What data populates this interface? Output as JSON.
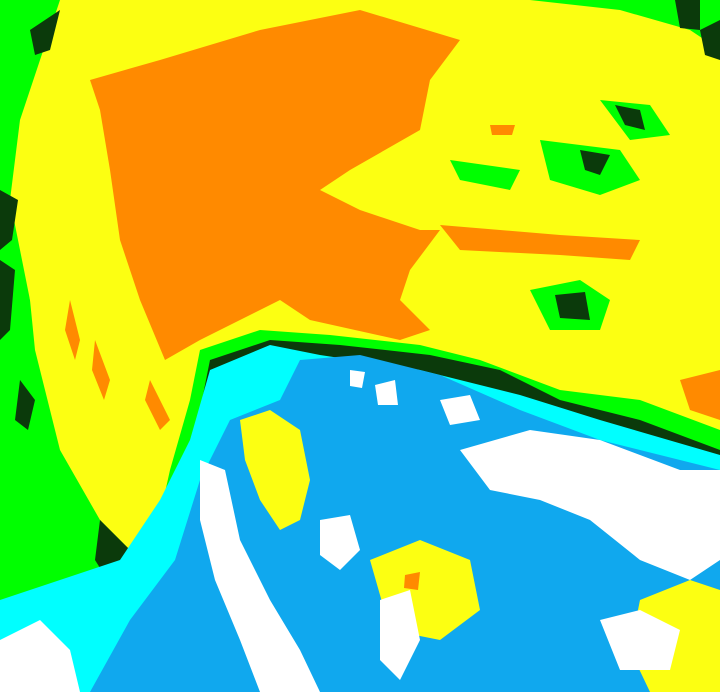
{
  "palette": {
    "yellow": "#fcff12",
    "orange": "#ff8a00",
    "green": "#00ff00",
    "dark_green": "#0b3a0b",
    "cyan": "#00ffff",
    "blue": "#10a8ee",
    "white": "#ffffff"
  }
}
